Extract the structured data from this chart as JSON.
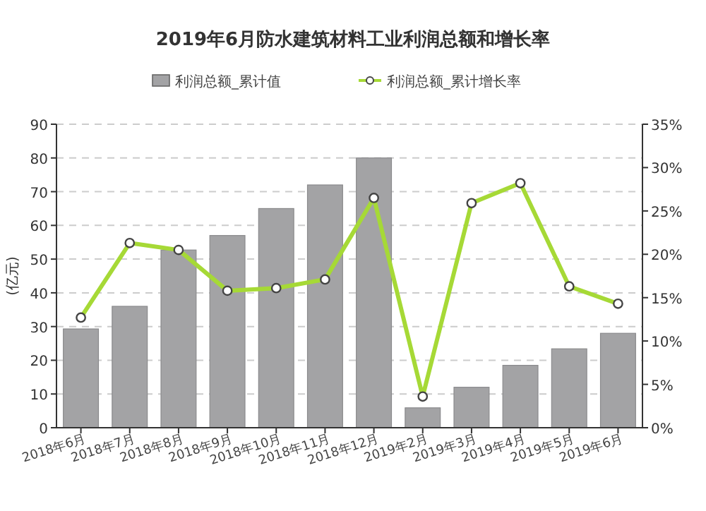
{
  "chart_data": {
    "type": "bar",
    "title": "2019年6月防水建筑材料工业利润总额和增长率",
    "ylabel": "(亿元)",
    "categories": [
      "2018年6月",
      "2018年7月",
      "2018年8月",
      "2018年9月",
      "2018年10月",
      "2018年11月",
      "2018年12月",
      "2019年2月",
      "2019年3月",
      "2019年4月",
      "2019年5月",
      "2019年6月"
    ],
    "series": [
      {
        "name": "利润总额_累计值",
        "color": "#a3a3a5",
        "values": [
          29.3,
          36,
          52.7,
          57,
          65,
          72,
          80,
          5.9,
          12,
          18.5,
          23.4,
          28
        ]
      },
      {
        "name": "利润总额_累计增长率",
        "type": "line",
        "axis": "y2",
        "color": "#a6d936",
        "values": [
          12.7,
          21.3,
          20.5,
          15.8,
          16.1,
          17.1,
          26.5,
          3.6,
          25.9,
          28.2,
          16.3,
          14.3
        ]
      }
    ],
    "ylim": [
      0,
      90
    ],
    "yticks": [
      0,
      10,
      20,
      30,
      40,
      50,
      60,
      70,
      80,
      90
    ],
    "y2lim": [
      0,
      35
    ],
    "y2ticks": [
      {
        "value": 0,
        "label": "0%"
      },
      {
        "value": 5,
        "label": "5%"
      },
      {
        "value": 10,
        "label": "10%"
      },
      {
        "value": 15,
        "label": "15%"
      },
      {
        "value": 20,
        "label": "20%"
      },
      {
        "value": 25,
        "label": "25%"
      },
      {
        "value": 30,
        "label": "30%"
      },
      {
        "value": 35,
        "label": "35%"
      }
    ],
    "grid": "y",
    "legend": "top",
    "marker": "circle",
    "line_style": "solid"
  }
}
